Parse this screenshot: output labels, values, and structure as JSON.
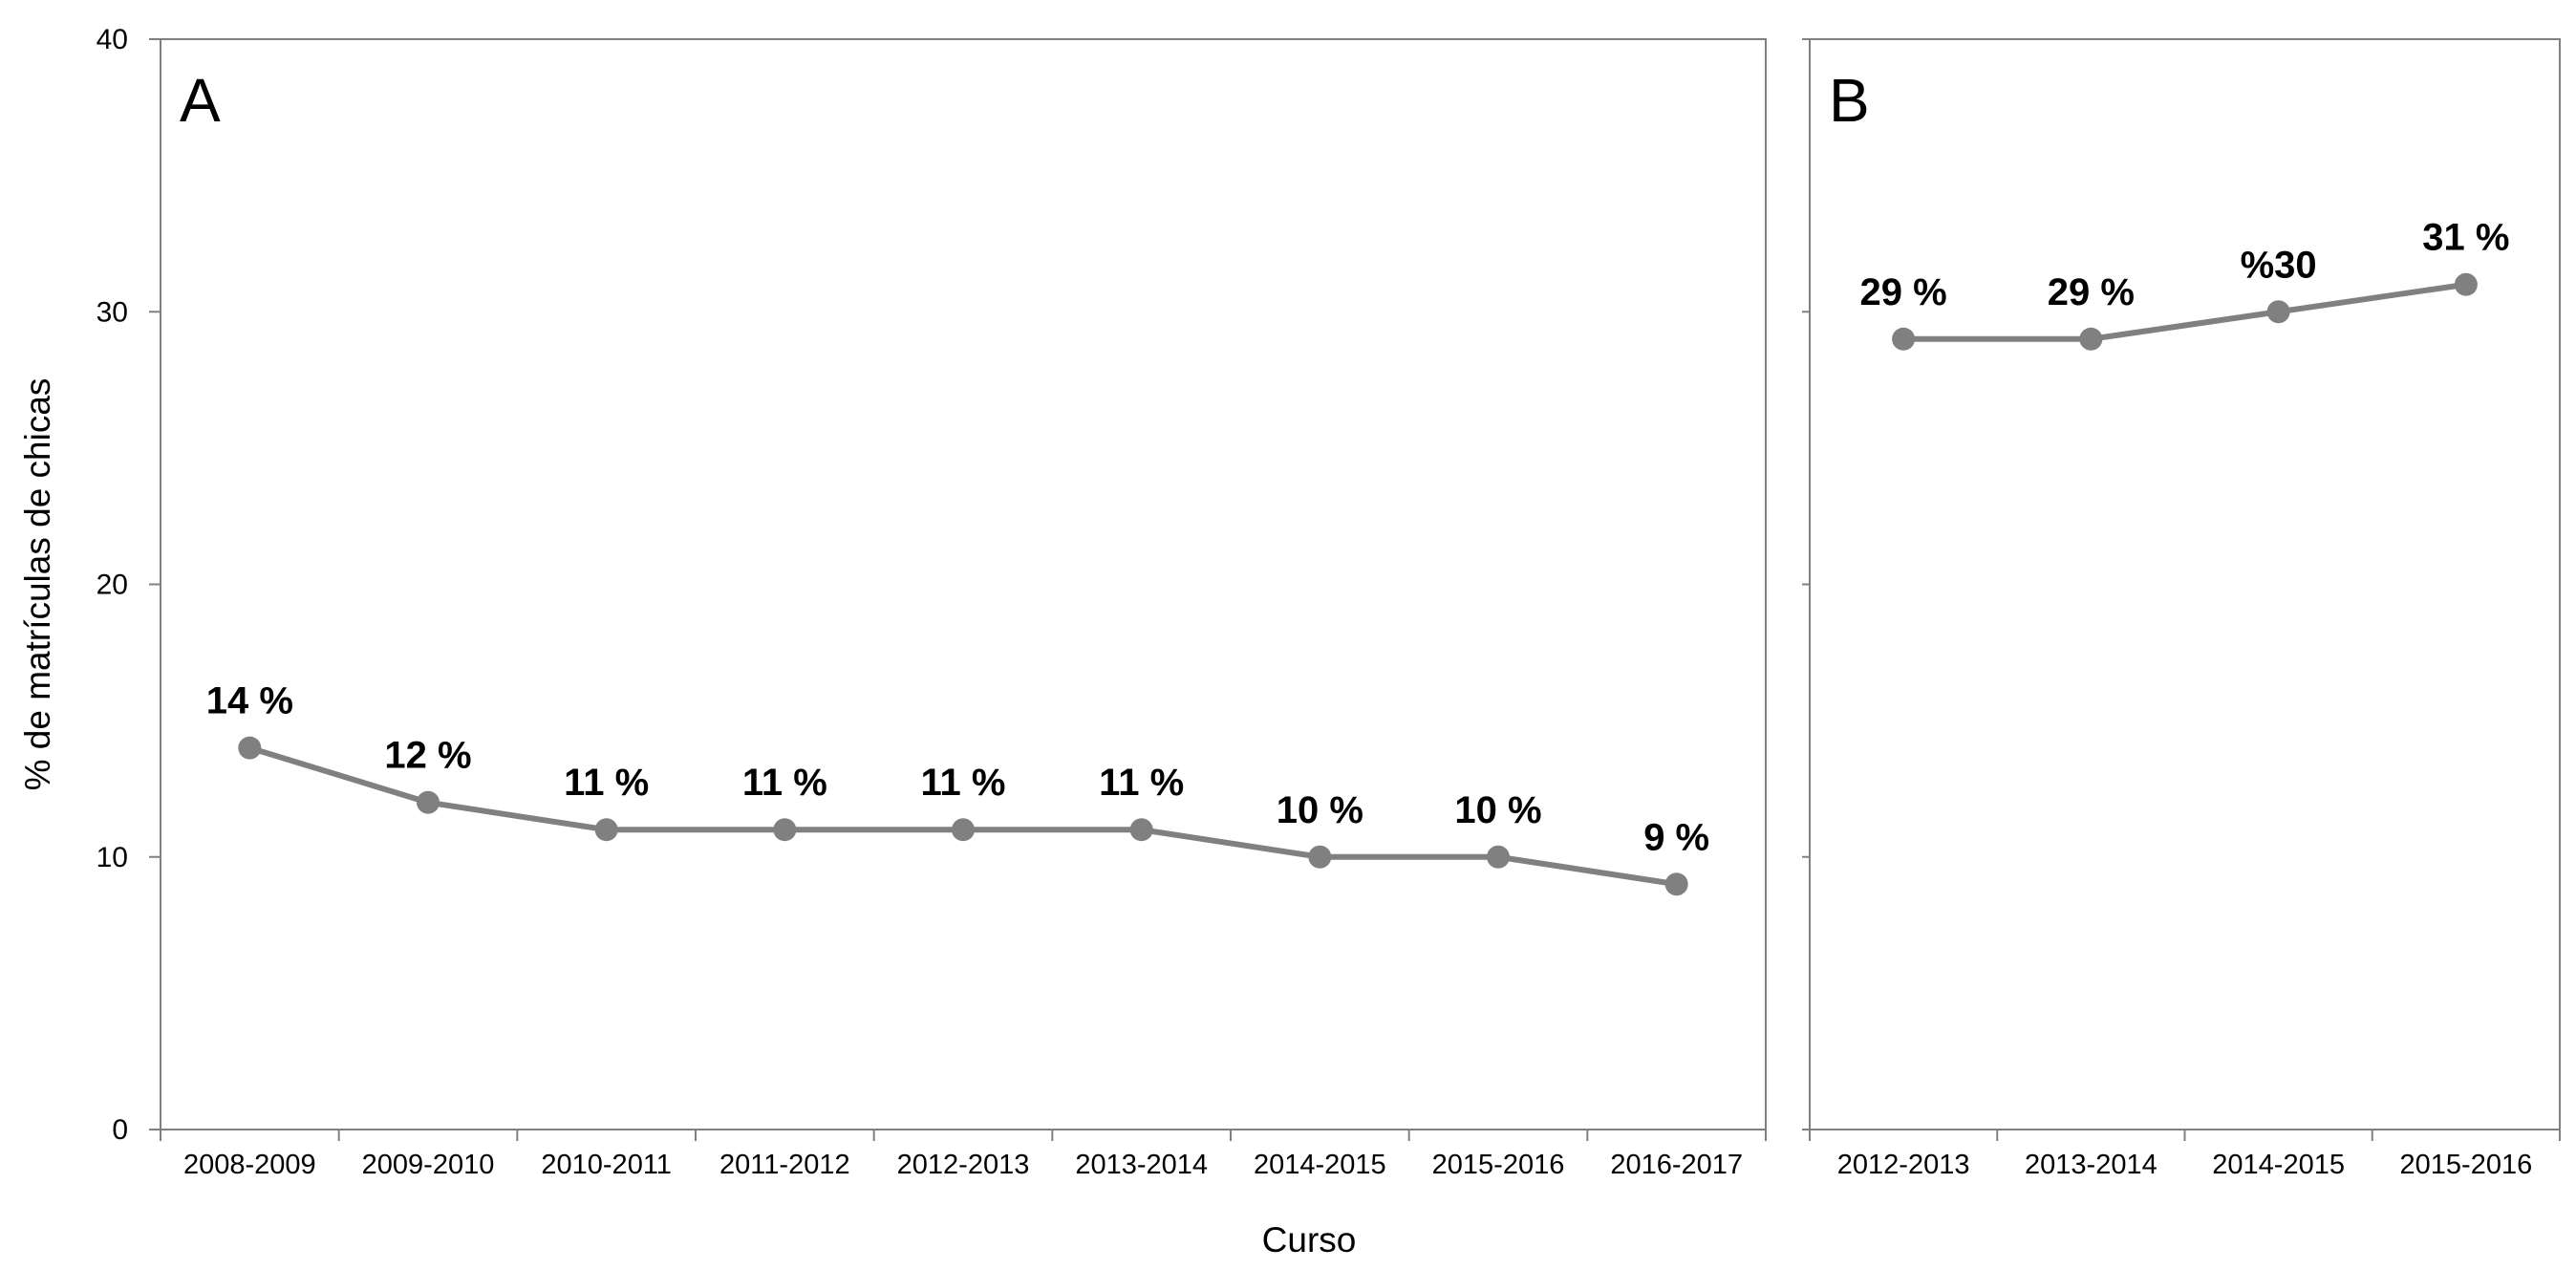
{
  "chart_data": {
    "type": "line",
    "ylabel": "% de matrículas de chicas",
    "xlabel": "Curso",
    "ylim": [
      0,
      40
    ],
    "yticks": [
      0,
      10,
      20,
      30,
      40
    ],
    "grid": false,
    "colors": {
      "line": "#808080",
      "marker": "#808080",
      "axis": "#808080"
    },
    "panels": [
      {
        "letter": "A",
        "categories": [
          "2008-2009",
          "2009-2010",
          "2010-2011",
          "2011-2012",
          "2012-2013",
          "2013-2014",
          "2014-2015",
          "2015-2016",
          "2016-2017"
        ],
        "values": [
          14,
          12,
          11,
          11,
          11,
          11,
          10,
          10,
          9
        ],
        "labels": [
          "14 %",
          "12 %",
          "11 %",
          "11 %",
          "11 %",
          "11 %",
          "10 %",
          "10 %",
          "9 %"
        ]
      },
      {
        "letter": "B",
        "categories": [
          "2012-2013",
          "2013-2014",
          "2014-2015",
          "2015-2016"
        ],
        "values": [
          29,
          29,
          30,
          31
        ],
        "labels": [
          "29 %",
          "29 %",
          "%30",
          "31 %"
        ]
      }
    ]
  }
}
